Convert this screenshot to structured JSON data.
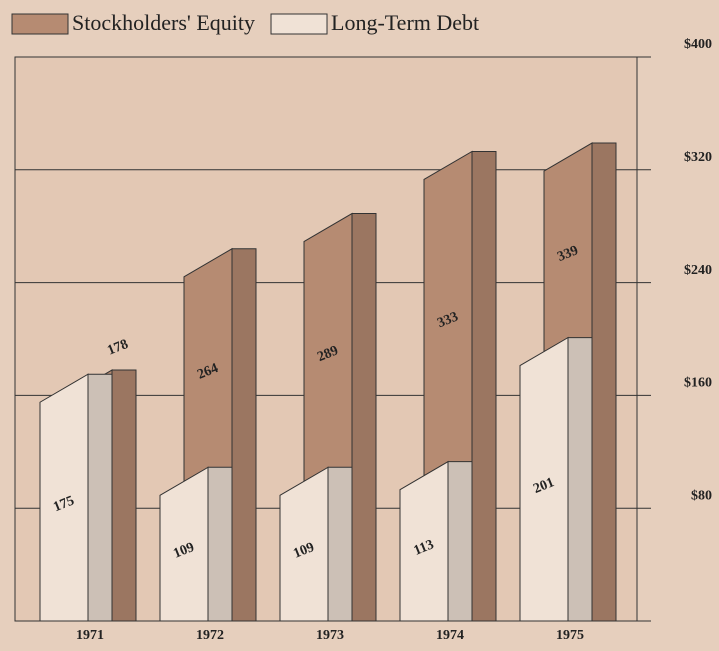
{
  "chart_data": {
    "type": "bar3d",
    "categories": [
      "1971",
      "1972",
      "1973",
      "1974",
      "1975"
    ],
    "series": [
      {
        "name": "Stockholders' Equity",
        "color": "#b68b72",
        "values": [
          178,
          264,
          289,
          333,
          339
        ]
      },
      {
        "name": "Long-Term Debt",
        "color": "#f0e2d6",
        "values": [
          175,
          109,
          109,
          113,
          201
        ]
      }
    ],
    "ylim": [
      0,
      400
    ],
    "yticks": [
      {
        "value": 80,
        "label": "$80"
      },
      {
        "value": 160,
        "label": "$160"
      },
      {
        "value": 240,
        "label": "$240"
      },
      {
        "value": 320,
        "label": "$320"
      },
      {
        "value": 400,
        "label": "$400"
      }
    ],
    "grid": true,
    "legend": "top"
  }
}
